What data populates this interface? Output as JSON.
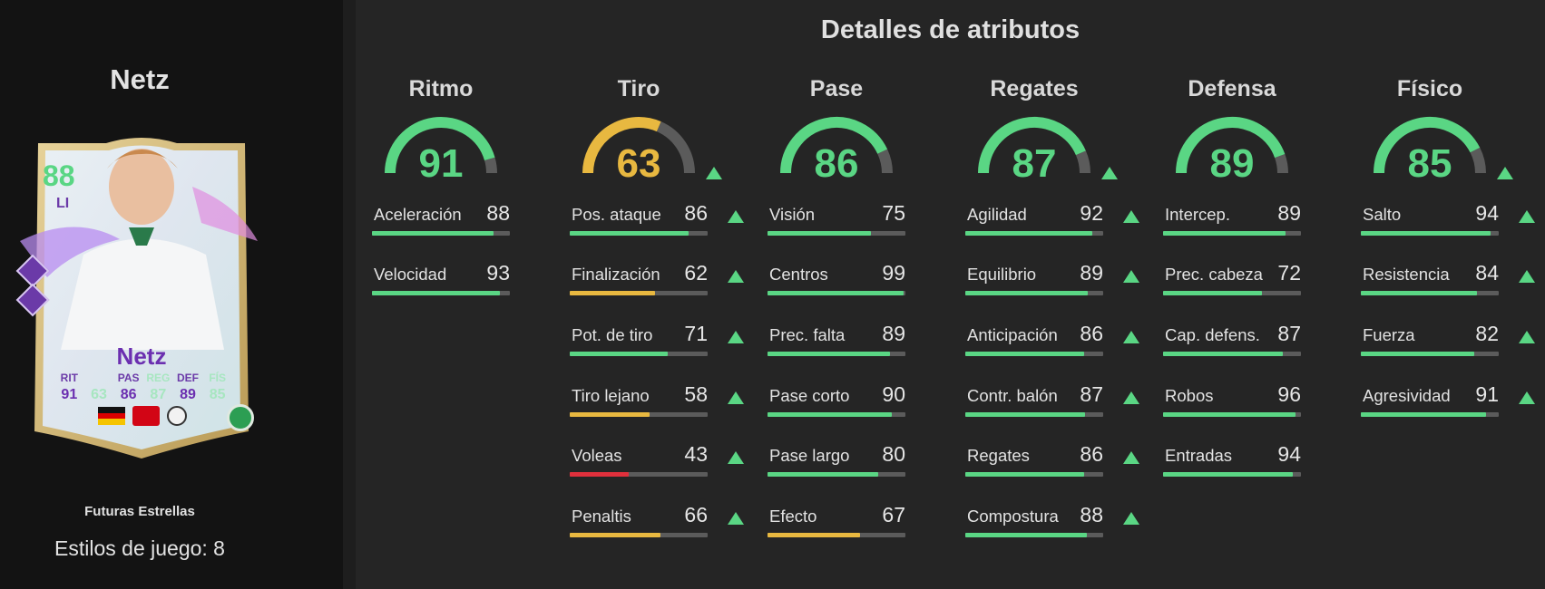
{
  "player": {
    "name": "Netz",
    "card": {
      "rating": "88",
      "position": "LI",
      "name": "Netz",
      "stats": [
        {
          "label": "RIT",
          "value": "91"
        },
        {
          "label": "",
          "value": "63"
        },
        {
          "label": "PAS",
          "value": "86"
        },
        {
          "label": "REG",
          "value": "87"
        },
        {
          "label": "DEF",
          "value": "89"
        },
        {
          "label": "FÍS",
          "value": "85"
        }
      ]
    },
    "version": "Futuras Estrellas",
    "playstyles_label": "Estilos de juego: 8"
  },
  "main": {
    "title": "Detalles de atributos"
  },
  "colors": {
    "green": "#5ad684",
    "yellow": "#e8b840",
    "red": "#e0303c",
    "track": "#5b5b5b"
  },
  "categories": [
    {
      "name": "Ritmo",
      "value": 91,
      "upgraded": false,
      "attributes": [
        {
          "name": "Aceleración",
          "value": 88,
          "upgraded": false
        },
        {
          "name": "Velocidad",
          "value": 93,
          "upgraded": false
        }
      ]
    },
    {
      "name": "Tiro",
      "value": 63,
      "upgraded": true,
      "attributes": [
        {
          "name": "Pos. ataque",
          "value": 86,
          "upgraded": true
        },
        {
          "name": "Finalización",
          "value": 62,
          "upgraded": true
        },
        {
          "name": "Pot. de tiro",
          "value": 71,
          "upgraded": true
        },
        {
          "name": "Tiro lejano",
          "value": 58,
          "upgraded": true
        },
        {
          "name": "Voleas",
          "value": 43,
          "upgraded": true
        },
        {
          "name": "Penaltis",
          "value": 66,
          "upgraded": true
        }
      ]
    },
    {
      "name": "Pase",
      "value": 86,
      "upgraded": false,
      "attributes": [
        {
          "name": "Visión",
          "value": 75,
          "upgraded": false
        },
        {
          "name": "Centros",
          "value": 99,
          "upgraded": false
        },
        {
          "name": "Prec. falta",
          "value": 89,
          "upgraded": false
        },
        {
          "name": "Pase corto",
          "value": 90,
          "upgraded": false
        },
        {
          "name": "Pase largo",
          "value": 80,
          "upgraded": false
        },
        {
          "name": "Efecto",
          "value": 67,
          "upgraded": false
        }
      ]
    },
    {
      "name": "Regates",
      "value": 87,
      "upgraded": true,
      "attributes": [
        {
          "name": "Agilidad",
          "value": 92,
          "upgraded": true
        },
        {
          "name": "Equilibrio",
          "value": 89,
          "upgraded": true
        },
        {
          "name": "Anticipación",
          "value": 86,
          "upgraded": true
        },
        {
          "name": "Contr. balón",
          "value": 87,
          "upgraded": true
        },
        {
          "name": "Regates",
          "value": 86,
          "upgraded": true
        },
        {
          "name": "Compostura",
          "value": 88,
          "upgraded": true
        }
      ]
    },
    {
      "name": "Defensa",
      "value": 89,
      "upgraded": false,
      "attributes": [
        {
          "name": "Intercep.",
          "value": 89,
          "upgraded": false
        },
        {
          "name": "Prec. cabeza",
          "value": 72,
          "upgraded": false
        },
        {
          "name": "Cap. defens.",
          "value": 87,
          "upgraded": false
        },
        {
          "name": "Robos",
          "value": 96,
          "upgraded": false
        },
        {
          "name": "Entradas",
          "value": 94,
          "upgraded": false
        }
      ]
    },
    {
      "name": "Físico",
      "value": 85,
      "upgraded": true,
      "attributes": [
        {
          "name": "Salto",
          "value": 94,
          "upgraded": true
        },
        {
          "name": "Resistencia",
          "value": 84,
          "upgraded": true
        },
        {
          "name": "Fuerza",
          "value": 82,
          "upgraded": true
        },
        {
          "name": "Agresividad",
          "value": 91,
          "upgraded": true
        }
      ]
    }
  ]
}
